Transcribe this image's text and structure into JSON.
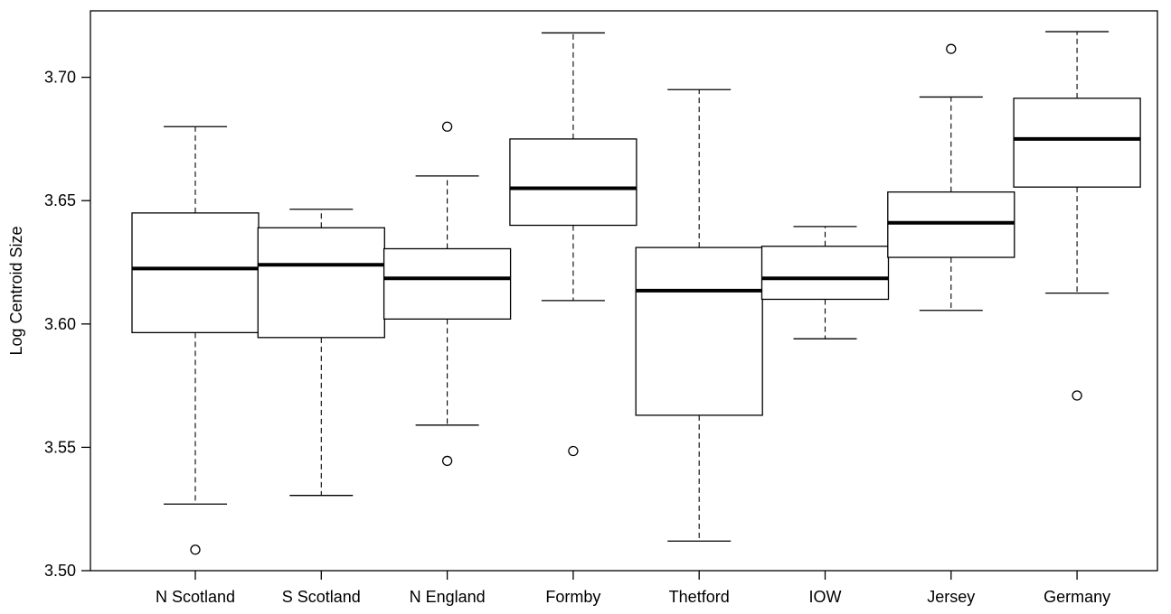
{
  "chart_data": {
    "type": "boxplot",
    "ylabel": "Log Centroid Size",
    "xlabel": "",
    "ylim": [
      3.5,
      3.72
    ],
    "y_ticks": [
      3.5,
      3.55,
      3.6,
      3.65,
      3.7
    ],
    "y_tick_labels": [
      "3.50",
      "3.55",
      "3.60",
      "3.65",
      "3.70"
    ],
    "grid": false,
    "categories": [
      "N Scotland",
      "S Scotland",
      "N England",
      "Formby",
      "Thetford",
      "IOW",
      "Jersey",
      "Germany"
    ],
    "boxes": [
      {
        "label": "N Scotland",
        "whisker_low": 3.527,
        "q1": 3.5965,
        "median": 3.6225,
        "q3": 3.645,
        "whisker_high": 3.68,
        "outliers": [
          3.5085
        ]
      },
      {
        "label": "S Scotland",
        "whisker_low": 3.5305,
        "q1": 3.5945,
        "median": 3.624,
        "q3": 3.639,
        "whisker_high": 3.6465,
        "outliers": []
      },
      {
        "label": "N England",
        "whisker_low": 3.559,
        "q1": 3.602,
        "median": 3.6185,
        "q3": 3.6305,
        "whisker_high": 3.66,
        "outliers": [
          3.68,
          3.5445
        ]
      },
      {
        "label": "Formby",
        "whisker_low": 3.6095,
        "q1": 3.64,
        "median": 3.655,
        "q3": 3.675,
        "whisker_high": 3.718,
        "outliers": [
          3.5485
        ]
      },
      {
        "label": "Thetford",
        "whisker_low": 3.512,
        "q1": 3.563,
        "median": 3.6135,
        "q3": 3.631,
        "whisker_high": 3.695,
        "outliers": []
      },
      {
        "label": "IOW",
        "whisker_low": 3.594,
        "q1": 3.61,
        "median": 3.6185,
        "q3": 3.6315,
        "whisker_high": 3.6395,
        "outliers": []
      },
      {
        "label": "Jersey",
        "whisker_low": 3.6055,
        "q1": 3.627,
        "median": 3.641,
        "q3": 3.6535,
        "whisker_high": 3.692,
        "outliers": [
          3.7115
        ]
      },
      {
        "label": "Germany",
        "whisker_low": 3.6125,
        "q1": 3.6555,
        "median": 3.675,
        "q3": 3.6915,
        "whisker_high": 3.7185,
        "outliers": [
          3.571
        ]
      }
    ]
  }
}
